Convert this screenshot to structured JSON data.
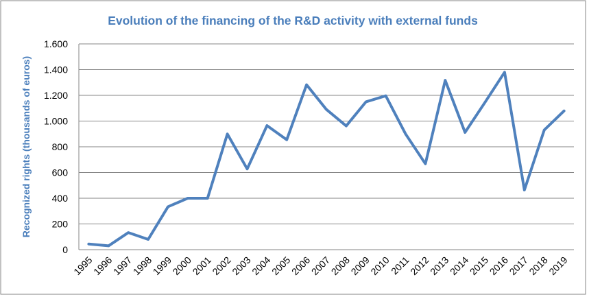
{
  "chart_data": {
    "type": "line",
    "title": "Evolution of the financing of the R&D activity with external funds",
    "xlabel": "",
    "ylabel": "Recognized rights (thousands of euros)",
    "ylim": [
      0,
      1600
    ],
    "yticks": [
      0,
      200,
      400,
      600,
      800,
      1000,
      1200,
      1400,
      1600
    ],
    "ytick_labels": [
      "0",
      "200",
      "400",
      "600",
      "800",
      "1.000",
      "1.200",
      "1.400",
      "1.600"
    ],
    "grid": true,
    "categories": [
      "1995",
      "1996",
      "1997",
      "1998",
      "1999",
      "2000",
      "2001",
      "2002",
      "2003",
      "2004",
      "2005",
      "2006",
      "2007",
      "2008",
      "2009",
      "2010",
      "2011",
      "2012",
      "2013",
      "2014",
      "2015",
      "2016",
      "2017",
      "2018",
      "2019"
    ],
    "series": [
      {
        "name": "Recognized rights",
        "color": "#4f81bd",
        "values": [
          44,
          30,
          133,
          80,
          334,
          400,
          400,
          900,
          628,
          965,
          855,
          1282,
          1090,
          962,
          1150,
          1196,
          900,
          668,
          1317,
          912,
          1143,
          1380,
          464,
          930,
          1079
        ]
      }
    ],
    "title_color": "#4a7ebb"
  }
}
